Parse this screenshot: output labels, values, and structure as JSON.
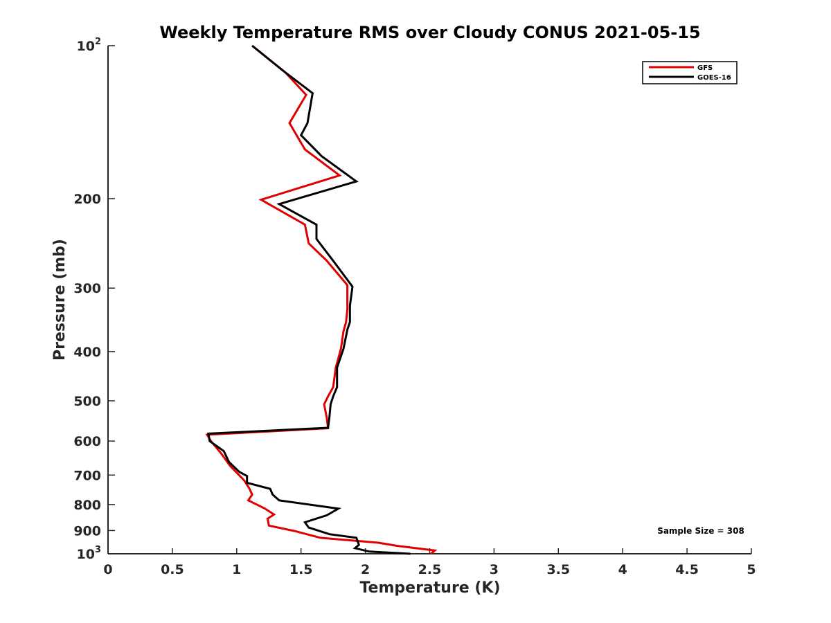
{
  "chart_data": {
    "type": "line",
    "title": "Weekly Temperature RMS over Cloudy CONUS 2021-05-15",
    "xlabel": "Temperature (K)",
    "ylabel": "Pressure (mb)",
    "xlim": [
      0,
      5
    ],
    "ylim": [
      100,
      1000
    ],
    "y_scale": "log",
    "y_reversed": true,
    "grid": false,
    "legend_position": "top-right",
    "x_ticks": [
      0,
      0.5,
      1,
      1.5,
      2,
      2.5,
      3,
      3.5,
      4,
      4.5,
      5
    ],
    "x_tick_labels": [
      "0",
      "0.5",
      "1",
      "1.5",
      "2",
      "2.5",
      "3",
      "3.5",
      "4",
      "4.5",
      "5"
    ],
    "y_ticks": [
      100,
      200,
      300,
      400,
      500,
      600,
      700,
      800,
      900,
      1000
    ],
    "y_tick_labels": [
      {
        "base": "10",
        "exp": "2"
      },
      {
        "base": "200",
        "exp": ""
      },
      {
        "base": "300",
        "exp": ""
      },
      {
        "base": "400",
        "exp": ""
      },
      {
        "base": "500",
        "exp": ""
      },
      {
        "base": "600",
        "exp": ""
      },
      {
        "base": "700",
        "exp": ""
      },
      {
        "base": "800",
        "exp": ""
      },
      {
        "base": "900",
        "exp": ""
      },
      {
        "base": "10",
        "exp": "3"
      }
    ],
    "annotation": "Sample Size = 308",
    "series": [
      {
        "name": "GFS",
        "color": "#e00000",
        "points": [
          [
            1.12,
            100
          ],
          [
            1.38,
            113
          ],
          [
            1.54,
            125
          ],
          [
            1.41,
            142
          ],
          [
            1.53,
            160
          ],
          [
            1.8,
            180
          ],
          [
            1.19,
            201
          ],
          [
            1.53,
            225
          ],
          [
            1.56,
            245
          ],
          [
            1.7,
            265
          ],
          [
            1.86,
            296
          ],
          [
            1.86,
            330
          ],
          [
            1.85,
            350
          ],
          [
            1.83,
            365
          ],
          [
            1.81,
            395
          ],
          [
            1.77,
            430
          ],
          [
            1.75,
            470
          ],
          [
            1.71,
            490
          ],
          [
            1.68,
            508
          ],
          [
            1.7,
            540
          ],
          [
            1.71,
            566
          ],
          [
            0.77,
            583
          ],
          [
            0.8,
            600
          ],
          [
            0.88,
            635
          ],
          [
            0.95,
            672
          ],
          [
            1.03,
            705
          ],
          [
            1.06,
            718
          ],
          [
            1.1,
            745
          ],
          [
            1.12,
            765
          ],
          [
            1.09,
            785
          ],
          [
            1.22,
            815
          ],
          [
            1.29,
            837
          ],
          [
            1.24,
            853
          ],
          [
            1.25,
            880
          ],
          [
            1.45,
            902
          ],
          [
            1.65,
            930
          ],
          [
            2.1,
            951
          ],
          [
            2.25,
            965
          ],
          [
            2.54,
            985
          ],
          [
            2.51,
            1000
          ]
        ]
      },
      {
        "name": "GOES-16",
        "color": "#000000",
        "points": [
          [
            1.12,
            100
          ],
          [
            1.38,
            113
          ],
          [
            1.59,
            124
          ],
          [
            1.55,
            142
          ],
          [
            1.5,
            150
          ],
          [
            1.66,
            165
          ],
          [
            1.93,
            185
          ],
          [
            1.33,
            205
          ],
          [
            1.62,
            225
          ],
          [
            1.62,
            240
          ],
          [
            1.75,
            265
          ],
          [
            1.9,
            298
          ],
          [
            1.88,
            325
          ],
          [
            1.88,
            350
          ],
          [
            1.86,
            362
          ],
          [
            1.83,
            395
          ],
          [
            1.78,
            430
          ],
          [
            1.78,
            470
          ],
          [
            1.75,
            490
          ],
          [
            1.73,
            508
          ],
          [
            1.72,
            540
          ],
          [
            1.71,
            565
          ],
          [
            0.78,
            580
          ],
          [
            0.79,
            600
          ],
          [
            0.9,
            628
          ],
          [
            0.94,
            660
          ],
          [
            1.02,
            690
          ],
          [
            1.08,
            703
          ],
          [
            1.08,
            725
          ],
          [
            1.26,
            745
          ],
          [
            1.28,
            765
          ],
          [
            1.33,
            785
          ],
          [
            1.79,
            815
          ],
          [
            1.7,
            840
          ],
          [
            1.53,
            867
          ],
          [
            1.56,
            888
          ],
          [
            1.72,
            915
          ],
          [
            1.93,
            930
          ],
          [
            1.95,
            960
          ],
          [
            1.92,
            975
          ],
          [
            2.03,
            990
          ],
          [
            2.35,
            1000
          ]
        ]
      }
    ]
  }
}
